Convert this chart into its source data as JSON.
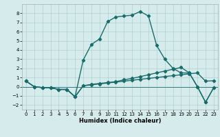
{
  "xlabel": "Humidex (Indice chaleur)",
  "background_color": "#d6ecec",
  "line_color": "#1a6b6b",
  "xlim": [
    -0.5,
    23.5
  ],
  "ylim": [
    -2.5,
    9.0
  ],
  "xticks": [
    0,
    1,
    2,
    3,
    4,
    5,
    6,
    7,
    8,
    9,
    10,
    11,
    12,
    13,
    14,
    15,
    16,
    17,
    18,
    19,
    20,
    21,
    22,
    23
  ],
  "yticks": [
    -2,
    -1,
    0,
    1,
    2,
    3,
    4,
    5,
    6,
    7,
    8
  ],
  "series1_x": [
    0,
    1,
    2,
    3,
    4,
    5,
    6,
    7,
    8,
    9,
    10,
    11,
    12,
    13,
    14,
    15,
    16,
    17,
    18,
    19,
    20,
    21,
    22,
    23
  ],
  "series1_y": [
    0.6,
    0.0,
    -0.1,
    -0.1,
    -0.3,
    -0.3,
    -1.1,
    0.1,
    0.2,
    0.3,
    0.4,
    0.5,
    0.6,
    0.7,
    0.8,
    0.9,
    1.0,
    1.1,
    1.2,
    1.3,
    1.4,
    1.5,
    0.6,
    0.65
  ],
  "series2_x": [
    0,
    1,
    2,
    3,
    4,
    5,
    6,
    7,
    8,
    9,
    10,
    11,
    12,
    13,
    14,
    15,
    16,
    17,
    18,
    19,
    20,
    21,
    22,
    23
  ],
  "series2_y": [
    0.6,
    0.0,
    -0.1,
    -0.1,
    -0.3,
    -0.3,
    -1.1,
    0.1,
    0.25,
    0.35,
    0.45,
    0.55,
    0.75,
    0.9,
    1.1,
    1.3,
    1.5,
    1.7,
    1.9,
    2.1,
    1.5,
    0.0,
    -1.7,
    -0.1
  ],
  "series3_x": [
    0,
    1,
    2,
    3,
    4,
    5,
    6,
    7,
    8,
    9,
    10,
    11,
    12,
    13,
    14,
    15,
    16,
    17,
    18,
    19,
    20,
    21,
    22,
    23
  ],
  "series3_y": [
    0.6,
    0.0,
    -0.1,
    -0.1,
    -0.3,
    -0.3,
    -1.1,
    2.9,
    4.6,
    5.2,
    7.1,
    7.6,
    7.7,
    7.8,
    8.2,
    7.7,
    4.5,
    3.0,
    2.0,
    1.5,
    1.5,
    0.0,
    -1.7,
    -0.1
  ],
  "grid_color": "#b0cece",
  "marker": "D",
  "marker_size": 2.2,
  "linewidth": 1.0,
  "tick_fontsize": 5.0,
  "xlabel_fontsize": 6.0
}
